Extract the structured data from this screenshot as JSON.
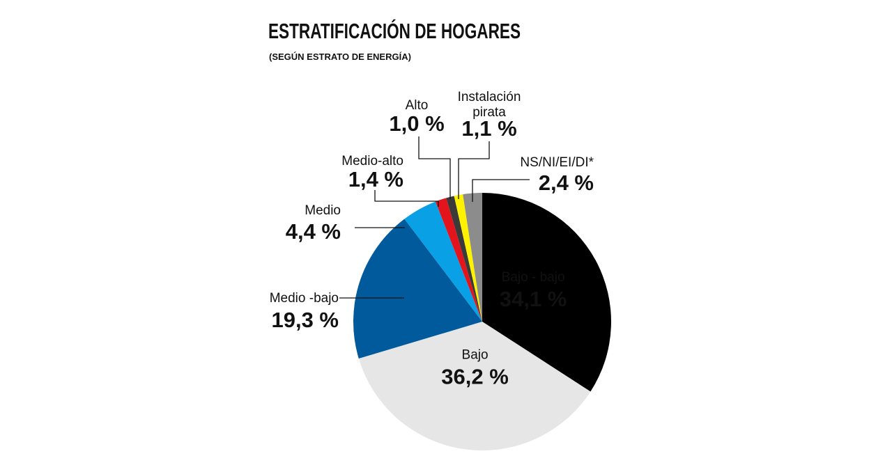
{
  "chart_data": {
    "type": "pie",
    "title": "ESTRATIFICACIÓN DE HOGARES",
    "subtitle": "(SEGÚN ESTRATO DE ENERGÍA)",
    "slices": [
      {
        "label": "Bajo - bajo",
        "value": 34.1,
        "value_label": "34,1 %",
        "color": "#000000"
      },
      {
        "label": "Bajo",
        "value": 36.2,
        "value_label": "36,2 %",
        "color": "#e6e6e6"
      },
      {
        "label": "Medio -bajo",
        "value": 19.3,
        "value_label": "19,3 %",
        "color": "#005a9c"
      },
      {
        "label": "Medio",
        "value": 4.4,
        "value_label": "4,4 %",
        "color": "#0aa0e6"
      },
      {
        "label": "Medio-alto",
        "value": 1.4,
        "value_label": "1,4 %",
        "color": "#e3141b"
      },
      {
        "label": "Alto",
        "value": 1.0,
        "value_label": "1,0 %",
        "color": "#3a3a3a"
      },
      {
        "label": "Instalación pirata",
        "value": 1.1,
        "value_label": "1,1 %",
        "color": "#fff200"
      },
      {
        "label": "NS/NI/EI/DI*",
        "value": 2.4,
        "value_label": "2,4 %",
        "color": "#8c8c8c"
      }
    ]
  }
}
